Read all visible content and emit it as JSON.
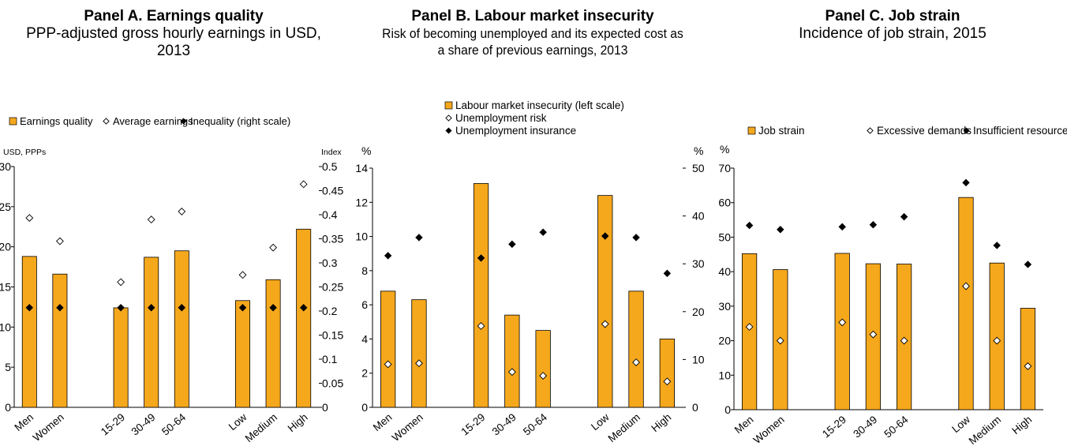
{
  "panels": [
    {
      "title": "Panel A. Earnings quality",
      "subtitle": "PPP-adjusted gross hourly earnings in USD,  2013"
    },
    {
      "title": "Panel B. Labour market insecurity",
      "subtitle": "Risk of becoming unemployed and its expected cost as a share of previous earnings, 2013"
    },
    {
      "title": "Panel C. Job strain",
      "subtitle": "Incidence of job strain, 2015"
    }
  ],
  "colors": {
    "bar": "#F6A81C",
    "bar_stroke": "#000000",
    "marker_dark": "#000000",
    "marker_light": "#ffffff"
  },
  "chart_data": [
    {
      "type": "bar",
      "categories": [
        "Men",
        "Women",
        "",
        "15-29",
        "30-49",
        "50-64",
        "",
        "Low",
        "Medium",
        "High"
      ],
      "series": [
        {
          "name": "Earnings quality",
          "kind": "bar",
          "axis": "left",
          "values": [
            18.8,
            16.6,
            null,
            12.4,
            18.7,
            19.5,
            null,
            13.3,
            15.9,
            22.2
          ]
        },
        {
          "name": "Average earnings",
          "kind": "marker-open",
          "axis": "left",
          "values": [
            23.6,
            20.7,
            null,
            15.6,
            23.4,
            24.4,
            null,
            16.5,
            19.9,
            27.8
          ]
        },
        {
          "name": "Inequality (right scale)",
          "kind": "marker-filled",
          "axis": "right",
          "values": [
            0.207,
            0.207,
            null,
            0.207,
            0.207,
            0.207,
            null,
            0.207,
            0.207,
            0.207
          ]
        }
      ],
      "ylabel": "USD, PPPs",
      "y2label": "Index",
      "ylim": [
        0,
        30
      ],
      "yticks": [
        "0",
        "5",
        "10",
        "15",
        "20",
        "25",
        "30"
      ],
      "y2lim": [
        0,
        0.5
      ],
      "y2ticks": [
        "0",
        "0.05",
        "0.1",
        "0.15",
        "0.2",
        "0.25",
        "0.3",
        "0.35",
        "0.4",
        "0.45",
        "0.5"
      ],
      "legend": "top",
      "grid": false
    },
    {
      "type": "bar",
      "categories": [
        "Men",
        "Women",
        "",
        "15-29",
        "30-49",
        "50-64",
        "",
        "Low",
        "Medium",
        "High"
      ],
      "series": [
        {
          "name": "Labour market insecurity (left scale)",
          "kind": "bar",
          "axis": "left",
          "values": [
            6.8,
            6.3,
            null,
            13.1,
            5.4,
            4.5,
            null,
            12.4,
            6.8,
            4.0
          ]
        },
        {
          "name": "Unemployment risk",
          "kind": "marker-open",
          "axis": "right",
          "values": [
            9.0,
            9.2,
            null,
            17.0,
            7.4,
            6.6,
            null,
            17.4,
            9.4,
            5.4
          ]
        },
        {
          "name": "Unemployment insurance",
          "kind": "marker-filled",
          "axis": "right",
          "values": [
            31.7,
            35.5,
            null,
            31.2,
            34.1,
            36.6,
            null,
            35.8,
            35.5,
            28.0
          ]
        }
      ],
      "ylabel": "%",
      "y2label": "%",
      "ylim": [
        0,
        14
      ],
      "yticks": [
        "0",
        "2",
        "4",
        "6",
        "8",
        "10",
        "12",
        "14"
      ],
      "y2lim": [
        0,
        50
      ],
      "y2ticks": [
        "0",
        "10",
        "20",
        "30",
        "40",
        "50"
      ],
      "legend": "top",
      "grid": false
    },
    {
      "type": "bar",
      "categories": [
        "Men",
        "Women",
        "",
        "15-29",
        "30-49",
        "50-64",
        "",
        "Low",
        "Medium",
        "High"
      ],
      "series": [
        {
          "name": "Job strain",
          "kind": "bar",
          "axis": "left",
          "values": [
            45.2,
            40.6,
            null,
            45.3,
            42.3,
            42.2,
            null,
            61.5,
            42.5,
            29.4
          ]
        },
        {
          "name": "Excessive demands",
          "kind": "marker-open",
          "axis": "left",
          "values": [
            24.0,
            20.0,
            null,
            25.3,
            21.8,
            20.0,
            null,
            35.8,
            20.0,
            12.6
          ]
        },
        {
          "name": "Insufficient resources",
          "kind": "marker-filled",
          "axis": "left",
          "values": [
            53.4,
            52.2,
            null,
            53.0,
            53.6,
            55.9,
            null,
            65.8,
            47.6,
            42.1
          ]
        }
      ],
      "ylabel": "%",
      "ylim": [
        0,
        70
      ],
      "yticks": [
        "0",
        "10",
        "20",
        "30",
        "40",
        "50",
        "60",
        "70"
      ],
      "legend": "top",
      "grid": false
    }
  ]
}
